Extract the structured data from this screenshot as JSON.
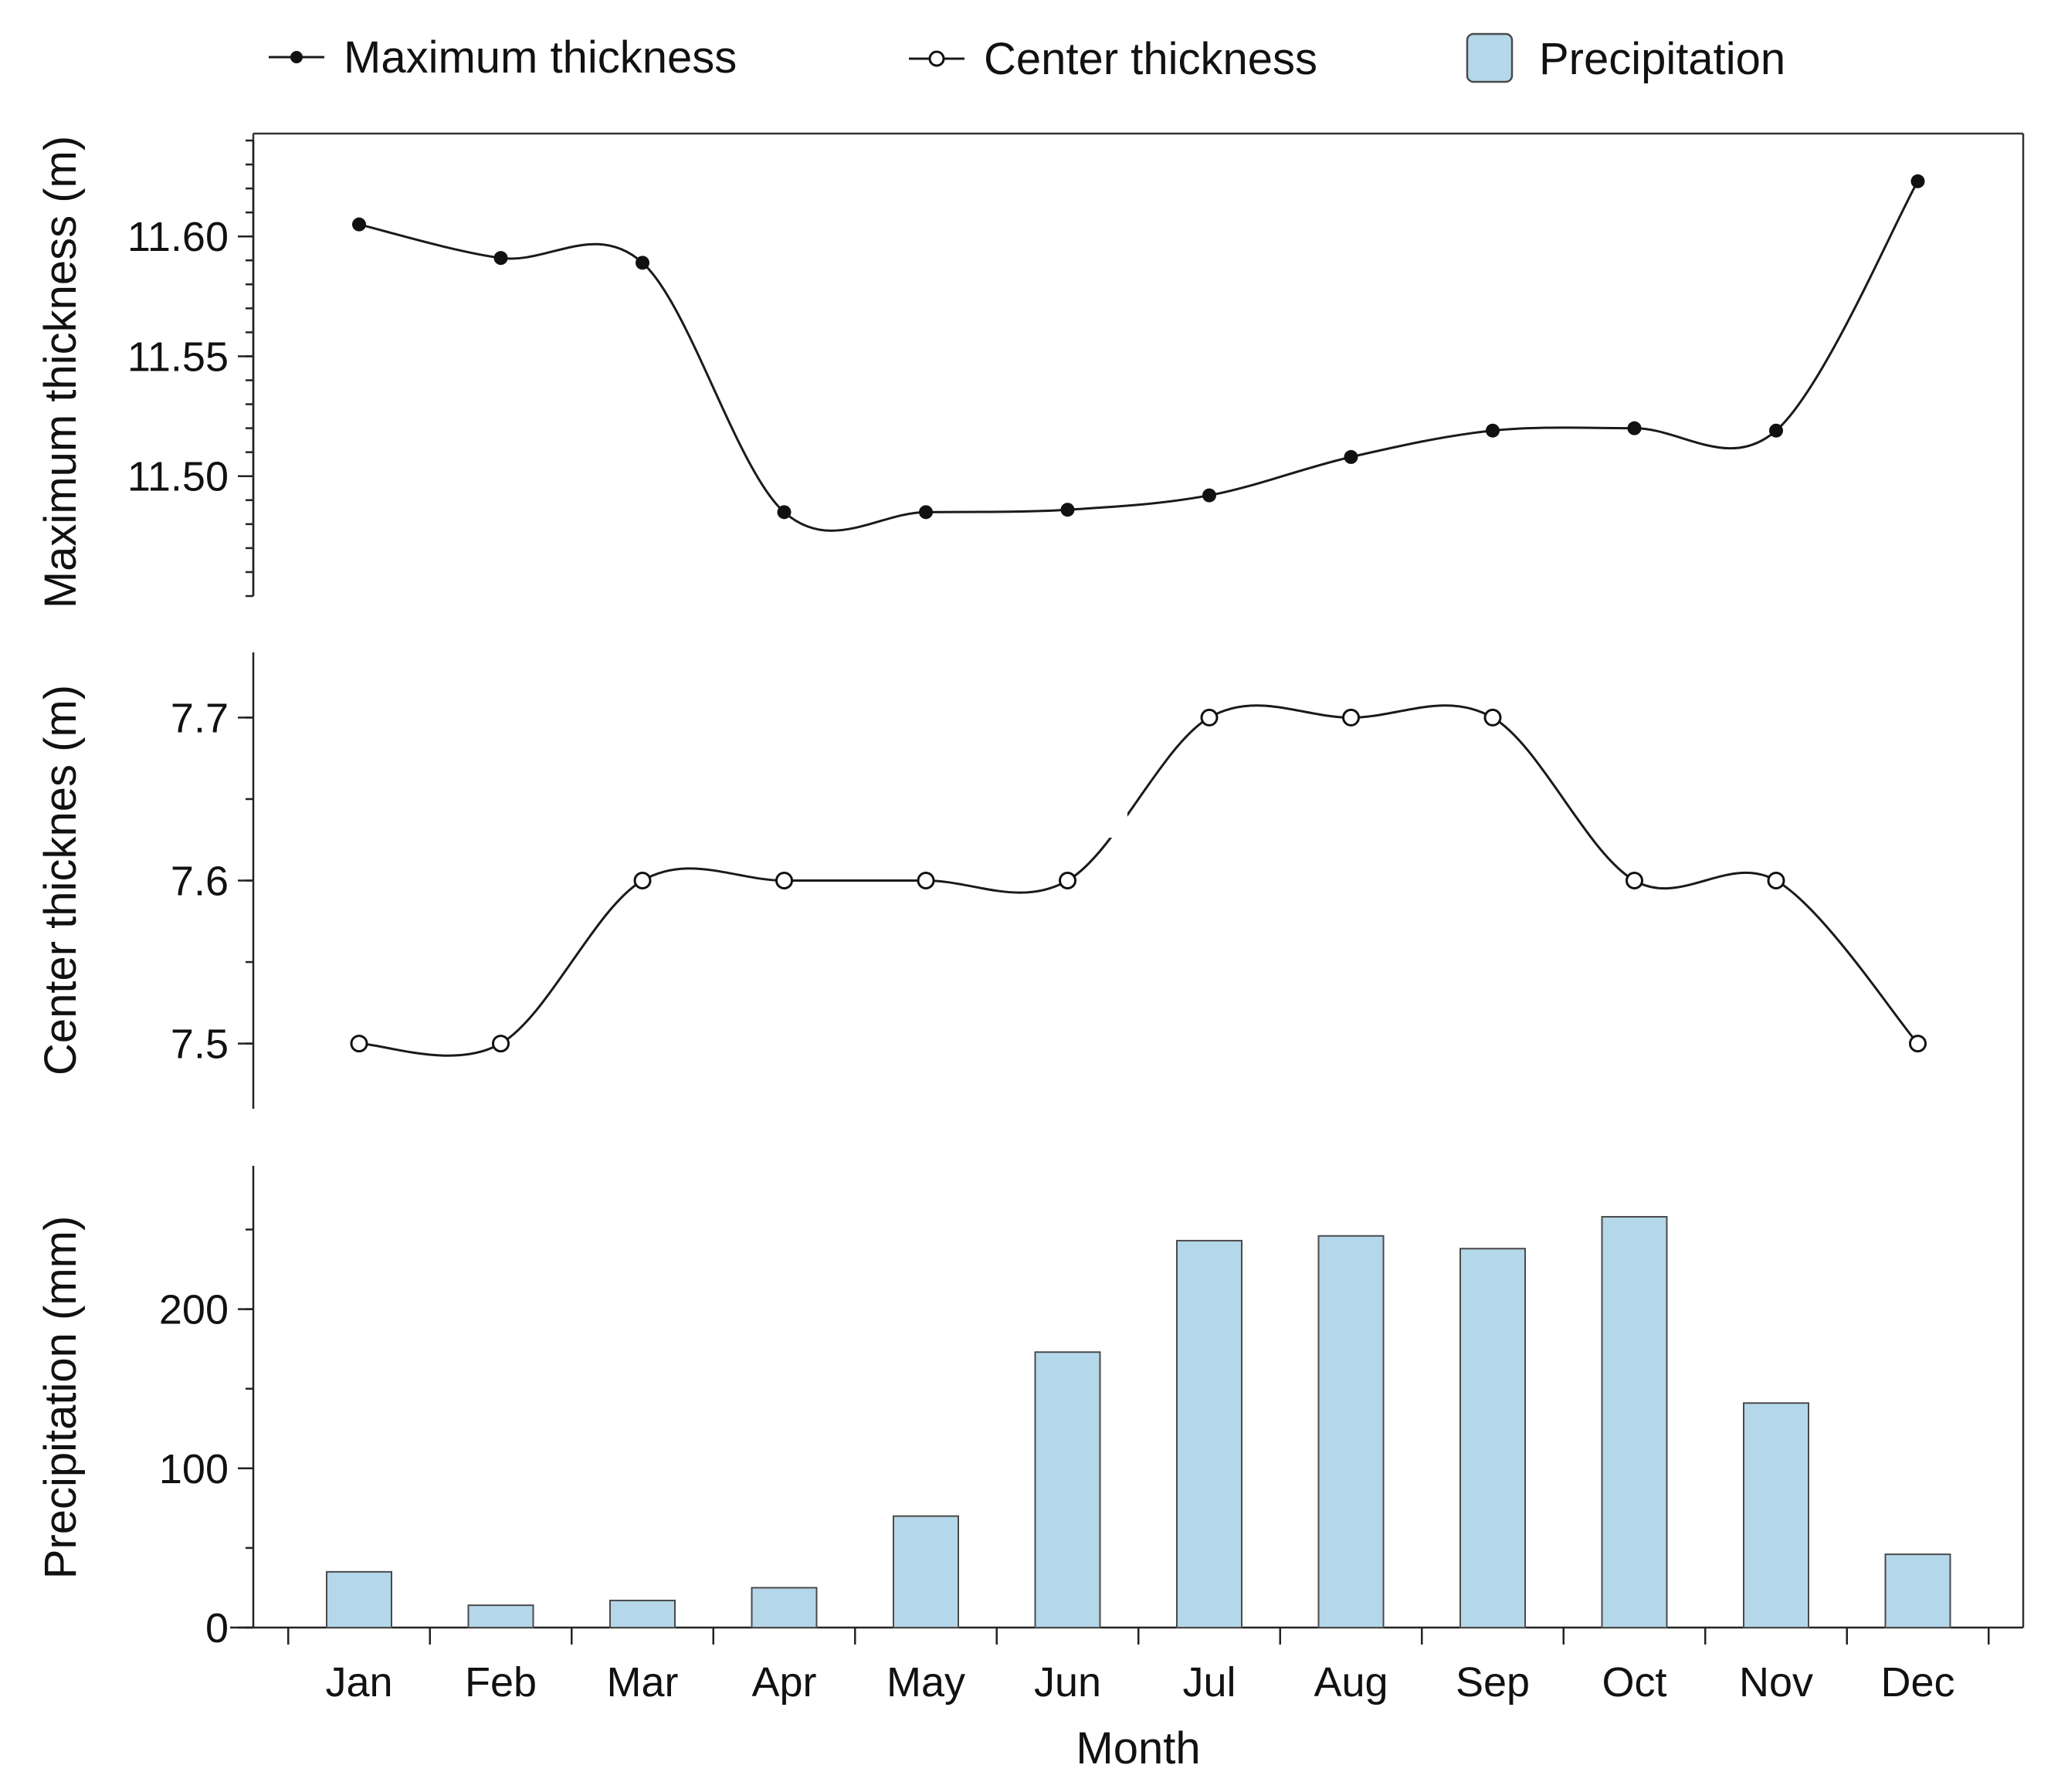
{
  "chart_data": {
    "type": "line+bar",
    "x_label": "Month",
    "categories": [
      "Jan",
      "Feb",
      "Mar",
      "Apr",
      "May",
      "Jun",
      "Jul",
      "Aug",
      "Sep",
      "Oct",
      "Nov",
      "Dec"
    ],
    "legend": {
      "position": "top",
      "entries": [
        {
          "label": "Maximum thickness",
          "marker": "filled-circle-line"
        },
        {
          "label": "Center thickness",
          "marker": "open-circle-line"
        },
        {
          "label": "Precipitation",
          "marker": "bar"
        }
      ]
    },
    "panels": [
      {
        "name": "max-thickness",
        "type": "line",
        "series_name": "Maximum thickness",
        "ylabel": "Maximum thickness (m)",
        "ylim": [
          11.45,
          11.64
        ],
        "yticks": [
          11.5,
          11.55,
          11.6
        ],
        "ytick_labels": [
          "11.50",
          "11.55",
          "11.60"
        ],
        "minor_step": 0.01,
        "marker": "filled",
        "values": [
          11.605,
          11.591,
          11.589,
          11.485,
          11.485,
          11.486,
          11.492,
          11.508,
          11.519,
          11.52,
          11.519,
          11.623
        ]
      },
      {
        "name": "center-thickness",
        "type": "line",
        "series_name": "Center thickness",
        "ylabel": "Center thicknes (m)",
        "ylim": [
          7.46,
          7.74
        ],
        "yticks": [
          7.5,
          7.6,
          7.7
        ],
        "ytick_labels": [
          "7.5",
          "7.6",
          "7.7"
        ],
        "minor_step": 0.05,
        "marker": "open",
        "values": [
          7.5,
          7.5,
          7.6,
          7.6,
          7.6,
          7.6,
          7.7,
          7.7,
          7.7,
          7.6,
          7.6,
          7.5
        ]
      },
      {
        "name": "precipitation",
        "type": "bar",
        "series_name": "Precipitation",
        "ylabel": "Precipitation (mm)",
        "ylim": [
          0,
          290
        ],
        "yticks": [
          0,
          100,
          200
        ],
        "ytick_labels": [
          "0",
          "100",
          "200"
        ],
        "minor_step": 50,
        "values": [
          35,
          14,
          17,
          25,
          70,
          173,
          243,
          246,
          238,
          258,
          141,
          46
        ]
      }
    ],
    "colors": {
      "bar_fill": "#b5d7ea",
      "bar_stroke": "#4a4a4a",
      "line": "#1a1a1a",
      "axis": "#222222"
    }
  }
}
